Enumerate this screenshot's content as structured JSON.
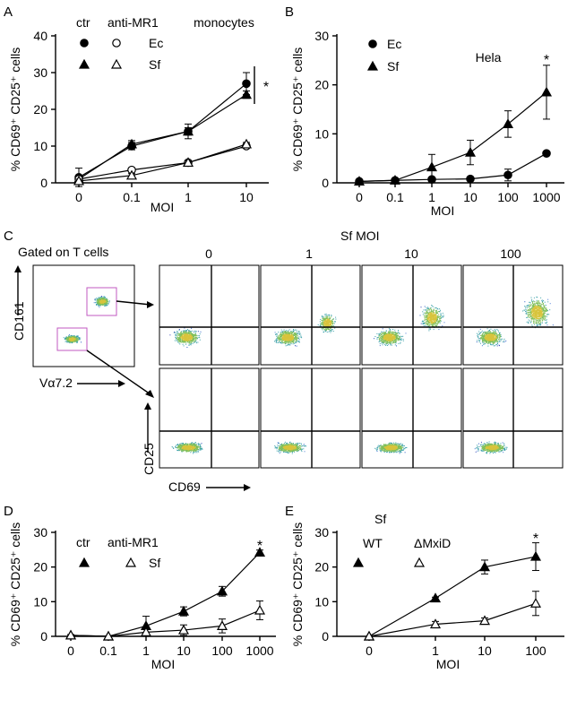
{
  "panel_labels": {
    "a": "A",
    "b": "B",
    "c": "C",
    "d": "D",
    "e": "E"
  },
  "chart_data": [
    {
      "id": "A",
      "type": "line",
      "title": "monocytes",
      "ylabel": "% CD69⁺ CD25⁺ cells",
      "xlabel": "MOI",
      "categories": [
        "0",
        "0.1",
        "1",
        "10"
      ],
      "ylim": [
        0,
        40
      ],
      "yticks": [
        "0",
        "10",
        "20",
        "30",
        "40"
      ],
      "legend_headers": [
        "ctr",
        "anti-MR1"
      ],
      "legend_labels": [
        "Ec",
        "Sf"
      ],
      "series": [
        {
          "name": "Ec",
          "marker": "circle",
          "filled": true,
          "values": [
            1.5,
            10,
            14,
            27
          ],
          "err": [
            2.5,
            1,
            1,
            3
          ]
        },
        {
          "name": "Sf",
          "marker": "triangle",
          "filled": true,
          "values": [
            1,
            10.5,
            14,
            24
          ],
          "err": [
            1,
            1,
            2,
            1
          ]
        },
        {
          "name": "Ec",
          "marker": "circle",
          "filled": false,
          "values": [
            1,
            3.5,
            5.5,
            10
          ],
          "err": [
            1,
            0.5,
            0.5,
            0.5
          ]
        },
        {
          "name": "Sf",
          "marker": "triangle",
          "filled": false,
          "values": [
            0.5,
            2,
            5.5,
            10.5
          ],
          "err": [
            0.5,
            0.5,
            0.5,
            0.5
          ]
        }
      ],
      "annotation": "*"
    },
    {
      "id": "B",
      "type": "line",
      "title": "Hela",
      "ylabel": "% CD69⁺ CD25⁺ cells",
      "xlabel": "MOI",
      "categories": [
        "0",
        "0.1",
        "1",
        "10",
        "100",
        "1000"
      ],
      "ylim": [
        0,
        30
      ],
      "yticks": [
        "0",
        "10",
        "20",
        "30"
      ],
      "legend_labels": [
        "Ec",
        "Sf"
      ],
      "series": [
        {
          "name": "Ec",
          "marker": "circle",
          "filled": true,
          "values": [
            0.3,
            0.5,
            0.7,
            0.8,
            1.6,
            6
          ],
          "err": [
            0.2,
            0.2,
            0.2,
            0.2,
            1.2,
            0.3
          ]
        },
        {
          "name": "Sf",
          "marker": "triangle",
          "filled": true,
          "values": [
            0.3,
            0.5,
            3.2,
            6.2,
            12,
            18.5
          ],
          "err": [
            0.2,
            0.2,
            2.6,
            2.5,
            2.7,
            5.5
          ]
        }
      ],
      "annotation": "*"
    },
    {
      "id": "D",
      "type": "line",
      "ylabel": "% CD69⁺ CD25⁺ cells",
      "xlabel": "MOI",
      "categories": [
        "0",
        "0.1",
        "1",
        "10",
        "100",
        "1000"
      ],
      "ylim": [
        0,
        30
      ],
      "yticks": [
        "0",
        "10",
        "20",
        "30"
      ],
      "legend_headers": [
        "ctr",
        "anti-MR1"
      ],
      "legend_labels": [
        "Sf"
      ],
      "series": [
        {
          "name": "Sf",
          "marker": "triangle",
          "filled": true,
          "values": [
            0.3,
            0,
            3,
            7.2,
            13,
            24.2
          ],
          "err": [
            0.2,
            0,
            2.8,
            1.3,
            1.4,
            0.7
          ]
        },
        {
          "name": "Sf",
          "marker": "triangle",
          "filled": false,
          "values": [
            0.3,
            0,
            1.2,
            1.8,
            3,
            7.5
          ],
          "err": [
            0.2,
            0,
            1,
            1.5,
            2,
            2.7
          ]
        }
      ],
      "annotation": "*"
    },
    {
      "id": "E",
      "type": "line",
      "title": "Sf",
      "ylabel": "% CD69⁺ CD25⁺ cells",
      "xlabel": "MOI",
      "categories": [
        "0",
        "1",
        "10",
        "100"
      ],
      "ylim": [
        0,
        30
      ],
      "yticks": [
        "0",
        "10",
        "20",
        "30"
      ],
      "legend_labels": [
        "WT",
        "ΔMxiD"
      ],
      "series": [
        {
          "name": "WT",
          "marker": "triangle",
          "filled": true,
          "values": [
            0,
            11,
            20,
            23
          ],
          "err": [
            0,
            0.3,
            2,
            4
          ]
        },
        {
          "name": "ΔMxiD",
          "marker": "triangle",
          "filled": false,
          "values": [
            0,
            3.5,
            4.5,
            9.5
          ],
          "err": [
            0,
            0.8,
            0.8,
            3.5
          ]
        }
      ],
      "annotation": "*"
    }
  ],
  "facs": {
    "gate_title": "Gated on T cells",
    "y_marker": "CD161",
    "x_marker": "Vα7.2",
    "sf_title": "Sf MOI",
    "moi_labels": [
      "0",
      "1",
      "10",
      "100"
    ],
    "y_axis": "CD25",
    "x_axis": "CD69"
  }
}
